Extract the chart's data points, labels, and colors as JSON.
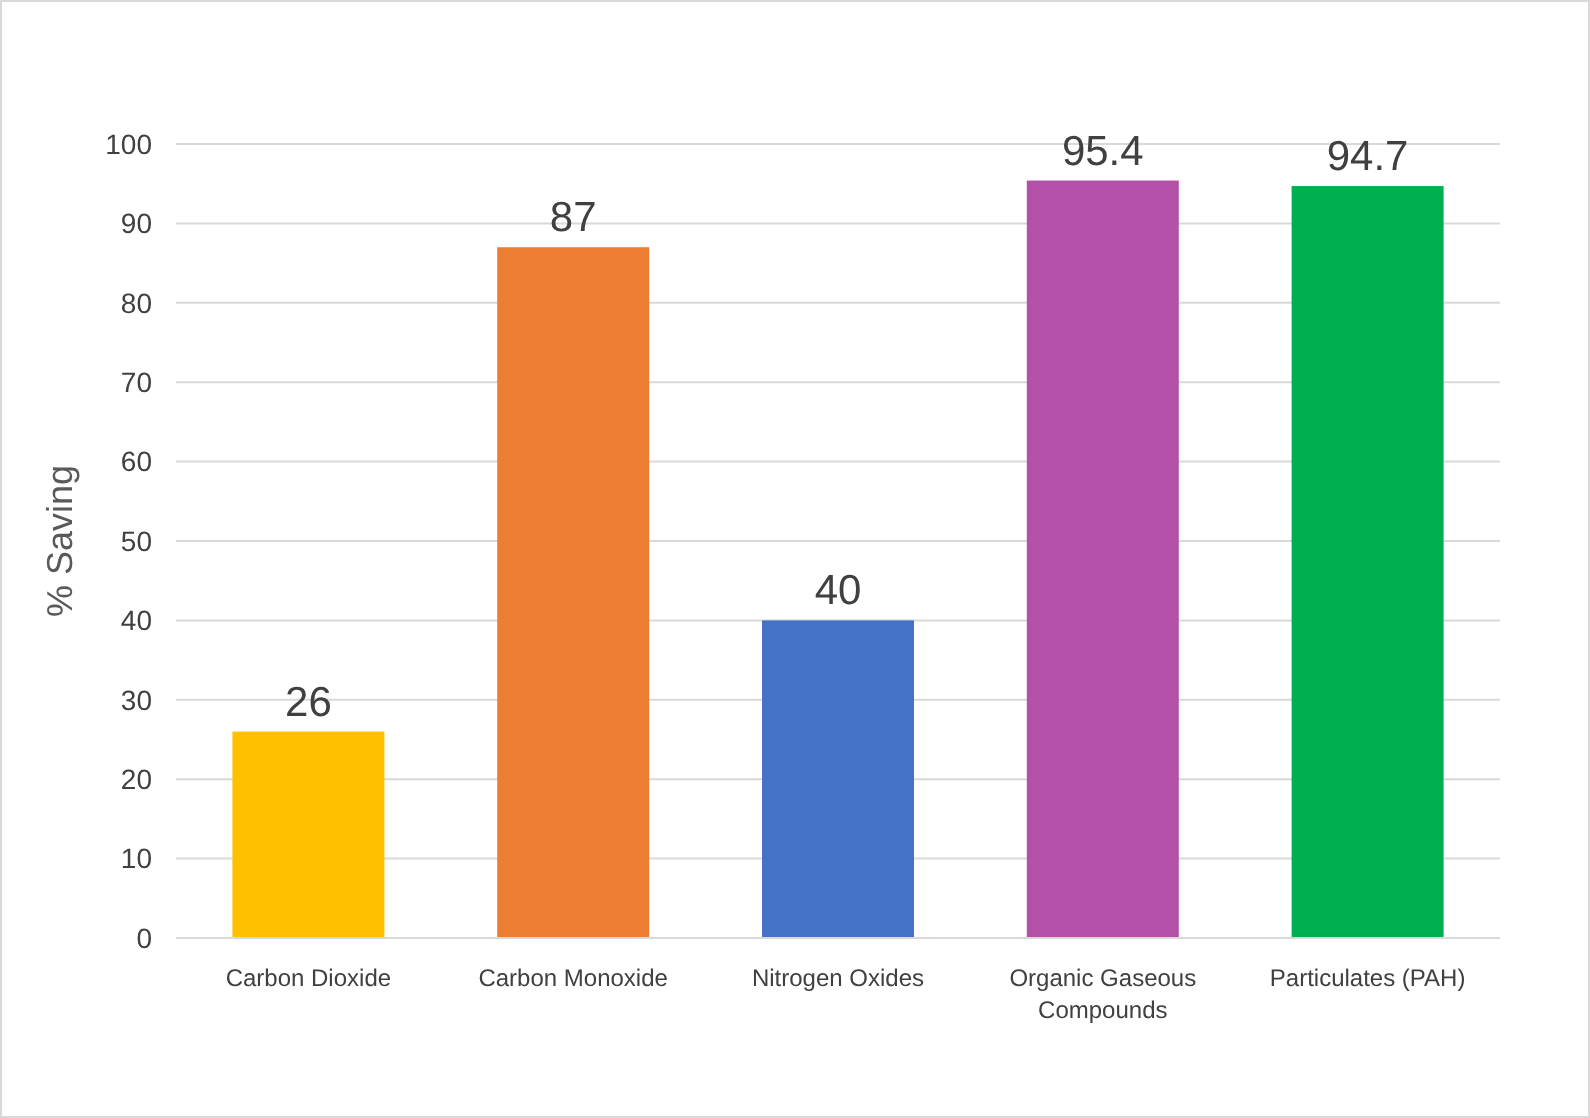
{
  "chart_data": {
    "type": "bar",
    "ylabel": "% Saving",
    "categories": [
      "Carbon Dioxide",
      "Carbon Monoxide",
      "Nitrogen Oxides",
      "Organic Gaseous Compounds",
      "Particulates (PAH)"
    ],
    "values": [
      26,
      87,
      40,
      95.4,
      94.7
    ],
    "colors": [
      "#ffc000",
      "#ed7d31",
      "#4472c4",
      "#b351a8",
      "#00b050"
    ],
    "ylim": [
      0,
      100
    ],
    "yticks": [
      0,
      10,
      20,
      30,
      40,
      50,
      60,
      70,
      80,
      90,
      100
    ],
    "grid": "y",
    "data_labels": true
  }
}
